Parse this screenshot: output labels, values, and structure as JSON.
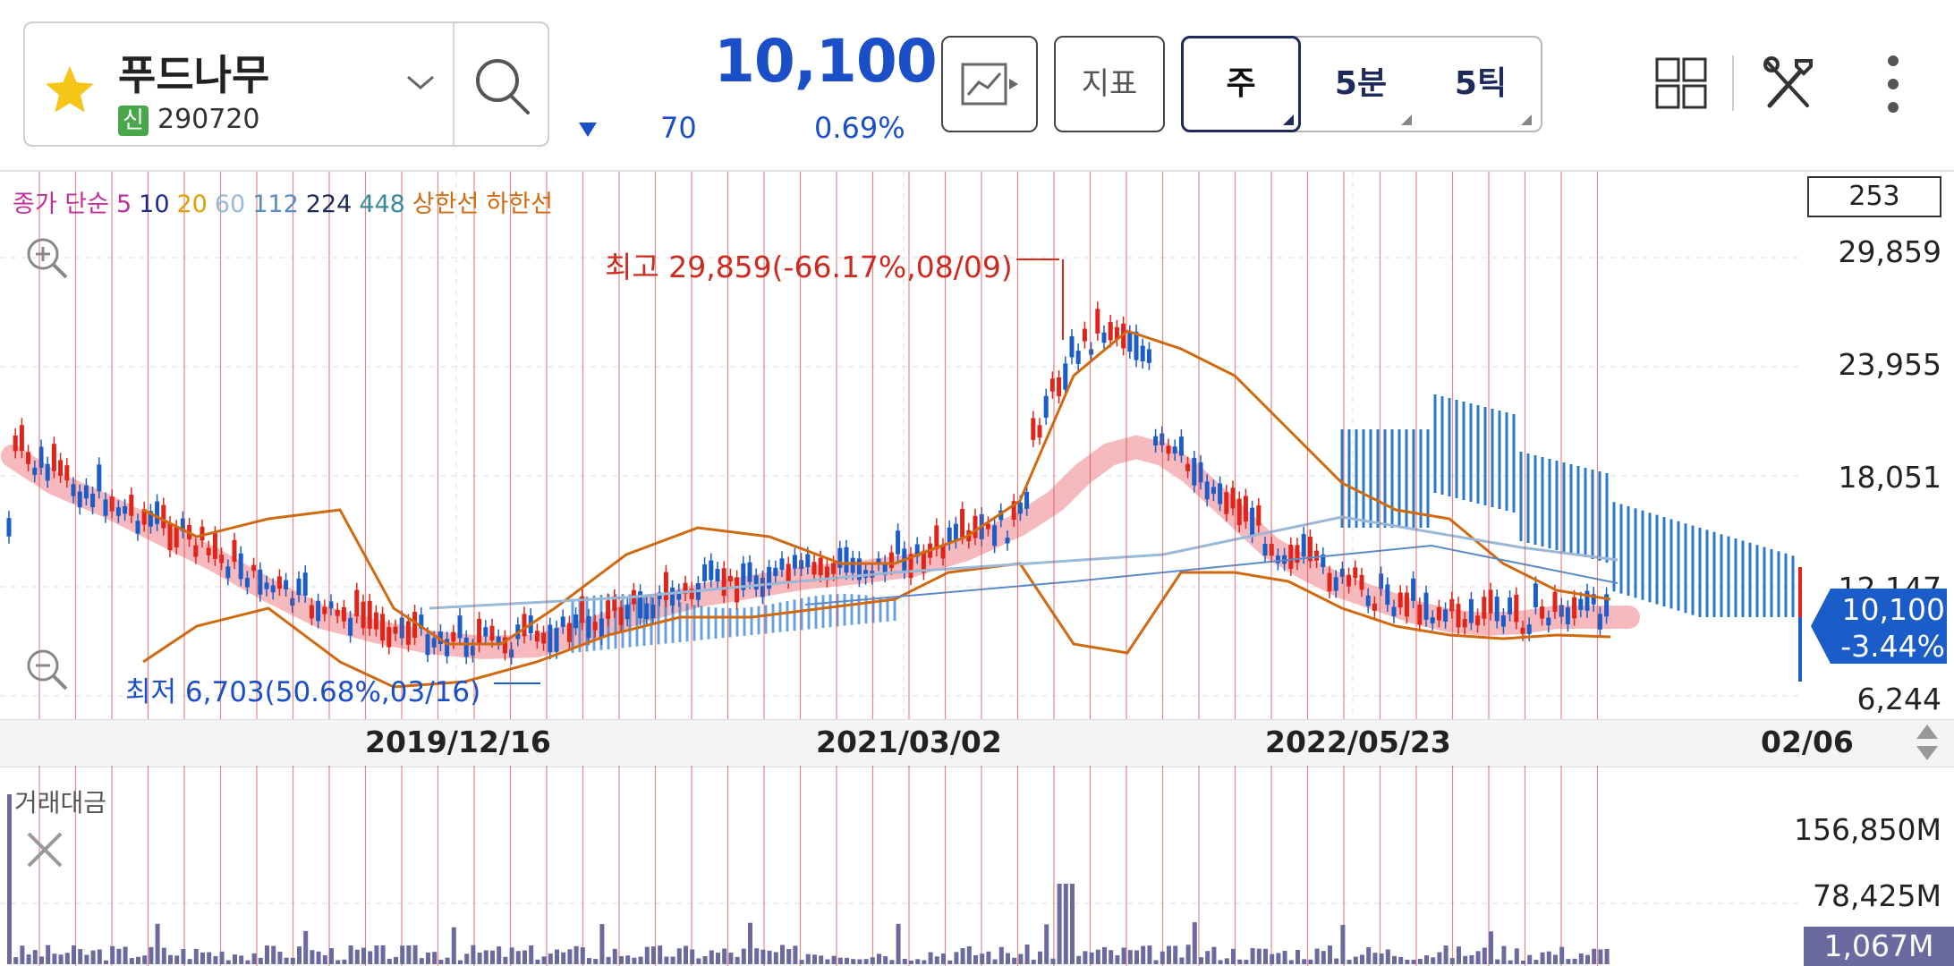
{
  "stock": {
    "name": "푸드나무",
    "badge": "신",
    "code": "290720",
    "price": "10,100",
    "change": "70",
    "change_pct": "0.69%"
  },
  "toolbar": {
    "indicator_label": "지표",
    "periods": [
      "주",
      "5분",
      "5틱"
    ]
  },
  "legend": {
    "label": "종가 단순",
    "items": [
      {
        "text": "5",
        "color": "#c0309a"
      },
      {
        "text": "10",
        "color": "#1e2a8a"
      },
      {
        "text": "20",
        "color": "#e0a000"
      },
      {
        "text": "60",
        "color": "#9ab8d8"
      },
      {
        "text": "112",
        "color": "#5a8ac8"
      },
      {
        "text": "224",
        "color": "#1e2a5a"
      },
      {
        "text": "448",
        "color": "#3a8a9a"
      },
      {
        "text": "상한선",
        "color": "#d06a10"
      },
      {
        "text": "하한선",
        "color": "#d06a10"
      }
    ]
  },
  "chart": {
    "count": "253",
    "y_labels": [
      "29,859",
      "23,955",
      "18,051",
      "12,147",
      "6,244"
    ],
    "current_price": "10,100",
    "current_pct": "-3.44%",
    "high_label": "최고 29,859(-66.17%,08/09)",
    "low_label": "최저 6,703(50.68%,03/16)",
    "x_labels": [
      "2019/12/16",
      "2021/03/02",
      "2022/05/23",
      "02/06"
    ],
    "colors": {
      "up": "#e0241a",
      "down": "#1a5cc8",
      "ma_band": "#f4a8ac",
      "bollinger": "#d06a10",
      "cloud": "#2a7ac8"
    }
  },
  "volume": {
    "label": "거래대금",
    "y_labels": [
      "156,850M",
      "78,425M"
    ],
    "current": "1,067M"
  }
}
